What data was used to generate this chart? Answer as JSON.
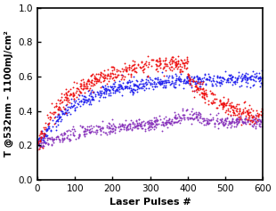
{
  "title": "",
  "xlabel": "Laser Pulses #",
  "ylabel": "T @532nm - 1100mJ/cm²",
  "xlim": [
    0,
    600
  ],
  "ylim": [
    0.0,
    1.0
  ],
  "xticks": [
    0,
    100,
    200,
    300,
    400,
    500,
    600
  ],
  "yticks": [
    0.0,
    0.2,
    0.4,
    0.6,
    0.8,
    1.0
  ],
  "blue_color": "#2222ee",
  "red_color": "#ee1111",
  "violet_color": "#8833bb",
  "dot_size": 1.8,
  "figsize": [
    3.1,
    2.37
  ],
  "dpi": 100
}
